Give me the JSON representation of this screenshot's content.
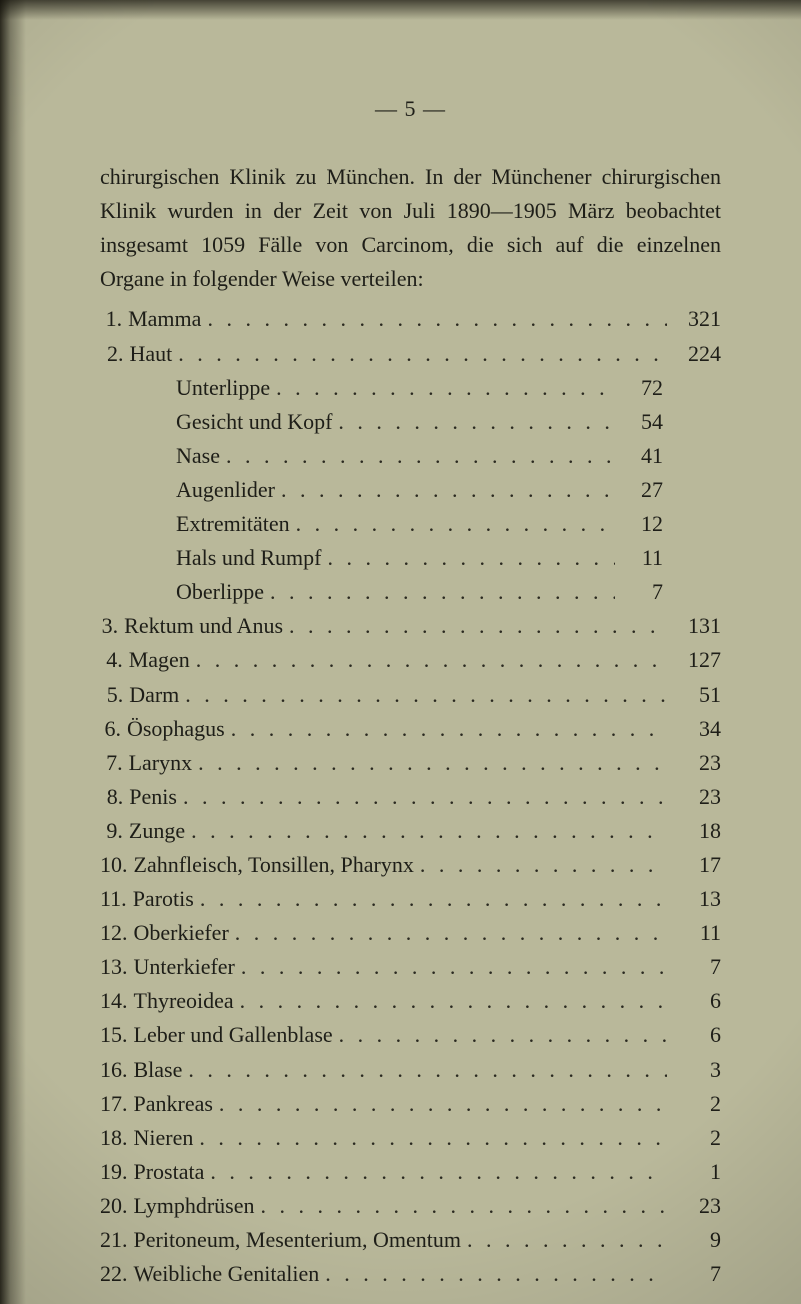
{
  "page_number_header": "—  5  —",
  "paragraph": "chirurgischen Klinik zu München.   In der Münchener chirur­gischen Klinik wurden in der Zeit von Juli 1890—1905 März beobachtet insgesamt 1059 Fälle von Carcinom, die sich auf die einzelnen Organe in folgender Weise verteilen:",
  "colors": {
    "paper": "#b9b89a",
    "ink": "#1e1e18"
  },
  "font": {
    "family": "Times New Roman",
    "size_pt": 16
  },
  "entries": [
    {
      "n": "1.",
      "label": "Mamma",
      "value": "321",
      "sub": []
    },
    {
      "n": "2.",
      "label": "Haut",
      "value": "224",
      "sub": [
        {
          "label": "Unterlippe",
          "value": "72"
        },
        {
          "label": "Gesicht und Kopf",
          "value": "54"
        },
        {
          "label": "Nase",
          "value": "41"
        },
        {
          "label": "Augenlider",
          "value": "27"
        },
        {
          "label": "Extremitäten",
          "value": "12"
        },
        {
          "label": "Hals und Rumpf",
          "value": "11"
        },
        {
          "label": "Oberlippe",
          "value": "7"
        }
      ]
    },
    {
      "n": "3.",
      "label": "Rektum und Anus",
      "value": "131",
      "sub": []
    },
    {
      "n": "4.",
      "label": "Magen",
      "value": "127",
      "sub": []
    },
    {
      "n": "5.",
      "label": "Darm",
      "value": "51",
      "sub": []
    },
    {
      "n": "6.",
      "label": "Ösophagus",
      "value": "34",
      "sub": []
    },
    {
      "n": "7.",
      "label": "Larynx",
      "value": "23",
      "sub": []
    },
    {
      "n": "8.",
      "label": "Penis",
      "value": "23",
      "sub": []
    },
    {
      "n": "9.",
      "label": "Zunge",
      "value": "18",
      "sub": []
    },
    {
      "n": "10.",
      "label": "Zahnfleisch, Tonsillen, Pharynx",
      "value": "17",
      "sub": []
    },
    {
      "n": "11.",
      "label": "Parotis",
      "value": "13",
      "sub": []
    },
    {
      "n": "12.",
      "label": "Oberkiefer",
      "value": "11",
      "sub": []
    },
    {
      "n": "13.",
      "label": "Unterkiefer",
      "value": "7",
      "sub": []
    },
    {
      "n": "14.",
      "label": "Thyreoidea",
      "value": "6",
      "sub": []
    },
    {
      "n": "15.",
      "label": "Leber und Gallenblase",
      "value": "6",
      "sub": []
    },
    {
      "n": "16.",
      "label": "Blase",
      "value": "3",
      "sub": []
    },
    {
      "n": "17.",
      "label": "Pankreas",
      "value": "2",
      "sub": []
    },
    {
      "n": "18.",
      "label": "Nieren",
      "value": "2",
      "sub": []
    },
    {
      "n": "19.",
      "label": "Prostata",
      "value": "1",
      "sub": []
    },
    {
      "n": "20.",
      "label": "Lymphdrüsen",
      "value": "23",
      "sub": []
    },
    {
      "n": "21.",
      "label": "Peritoneum, Mesenterium, Omentum",
      "value": "9",
      "sub": []
    },
    {
      "n": "22.",
      "label": "Weibliche Genitalien",
      "value": "7",
      "sub": []
    }
  ]
}
